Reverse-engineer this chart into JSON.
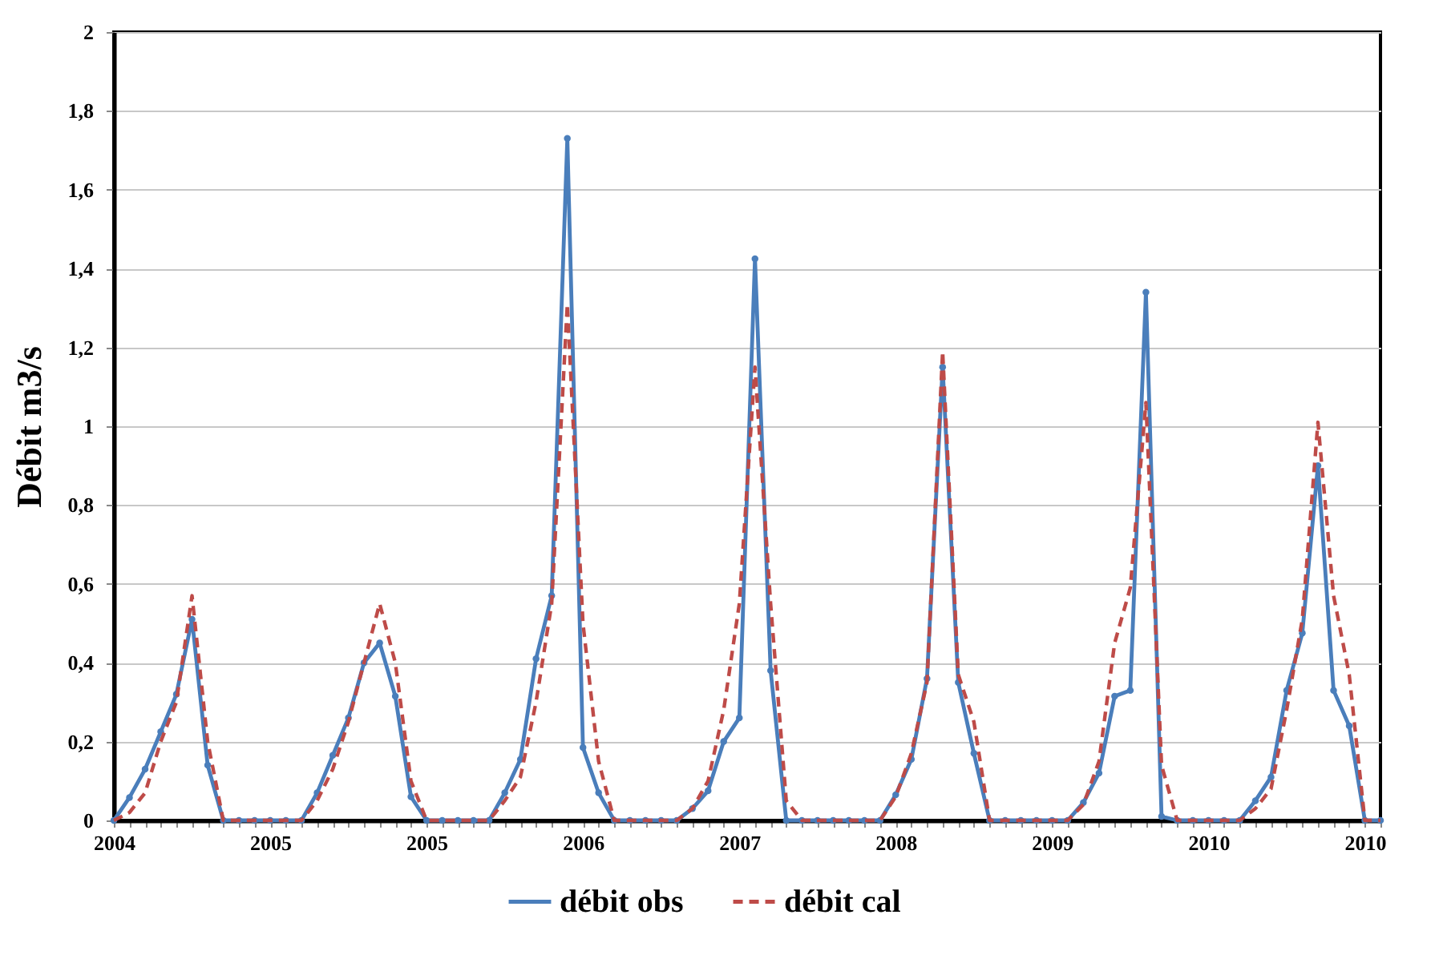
{
  "chart_data": {
    "type": "line",
    "ylabel": "Débit m3/s",
    "categories": [
      "2004",
      null,
      null,
      null,
      null,
      null,
      null,
      null,
      null,
      null,
      "2005",
      null,
      null,
      null,
      null,
      null,
      null,
      null,
      null,
      null,
      "2005",
      null,
      null,
      null,
      null,
      null,
      null,
      null,
      null,
      null,
      "2006",
      null,
      null,
      null,
      null,
      null,
      null,
      null,
      null,
      null,
      "2007",
      null,
      null,
      null,
      null,
      null,
      null,
      null,
      null,
      null,
      "2008",
      null,
      null,
      null,
      null,
      null,
      null,
      null,
      null,
      null,
      "2009",
      null,
      null,
      null,
      null,
      null,
      null,
      null,
      null,
      null,
      "2010",
      null,
      null,
      null,
      null,
      null,
      null,
      null,
      null,
      null,
      "2010",
      null
    ],
    "series": [
      {
        "name": "débit obs",
        "color": "#4a7ebb",
        "marker": "circle",
        "line_style": "solid",
        "values": [
          0,
          0.058,
          0.13,
          0.225,
          0.32,
          0.51,
          0.14,
          0,
          0,
          0,
          0,
          0,
          0,
          0.07,
          0.165,
          0.26,
          0.4,
          0.45,
          0.315,
          0.06,
          0,
          0,
          0,
          0,
          0,
          0.07,
          0.155,
          0.41,
          0.57,
          1.73,
          0.185,
          0.07,
          0,
          0,
          0,
          0,
          0,
          0.03,
          0.075,
          0.2,
          0.26,
          1.425,
          0.38,
          0,
          0,
          0,
          0,
          0,
          0,
          0,
          0.065,
          0.155,
          0.36,
          1.15,
          0.35,
          0.17,
          0,
          0,
          0,
          0,
          0,
          0,
          0.045,
          0.12,
          0.315,
          0.33,
          1.34,
          0.01,
          0,
          0,
          0,
          0,
          0,
          0.05,
          0.11,
          0.33,
          0.475,
          0.9,
          0.33,
          0.24,
          0,
          0
        ]
      },
      {
        "name": "débit cal",
        "color": "#be4b48",
        "marker": "none",
        "line_style": "dashed",
        "values": [
          0,
          0.02,
          0.07,
          0.2,
          0.3,
          0.57,
          0.2,
          0,
          0,
          0,
          0,
          0,
          0,
          0.05,
          0.13,
          0.25,
          0.4,
          0.55,
          0.4,
          0.1,
          0,
          0,
          0,
          0,
          0,
          0.05,
          0.11,
          0.3,
          0.55,
          1.31,
          0.5,
          0.15,
          0,
          0,
          0,
          0,
          0,
          0.03,
          0.1,
          0.28,
          0.55,
          1.15,
          0.55,
          0.05,
          0,
          0,
          0,
          0,
          0,
          0,
          0.06,
          0.17,
          0.35,
          1.19,
          0.37,
          0.25,
          0,
          0,
          0,
          0,
          0,
          0,
          0.04,
          0.15,
          0.45,
          0.59,
          1.06,
          0.14,
          0,
          0,
          0,
          0,
          0,
          0.03,
          0.08,
          0.28,
          0.51,
          1.01,
          0.57,
          0.37,
          0,
          0
        ]
      }
    ],
    "ylim": [
      0,
      2
    ],
    "yticks": [
      0,
      {
        "value": 0.2,
        "label": "0,2"
      },
      {
        "value": 0.4,
        "label": "0,4"
      },
      {
        "value": 0.6,
        "label": "0,6"
      },
      {
        "value": 0.8,
        "label": "0,8"
      },
      1,
      {
        "value": 1.2,
        "label": "1,2"
      },
      {
        "value": 1.4,
        "label": "1,4"
      },
      {
        "value": 1.6,
        "label": "1,6"
      },
      {
        "value": 1.8,
        "label": "1,8"
      },
      2
    ],
    "grid": "y",
    "legend": "bottom"
  }
}
